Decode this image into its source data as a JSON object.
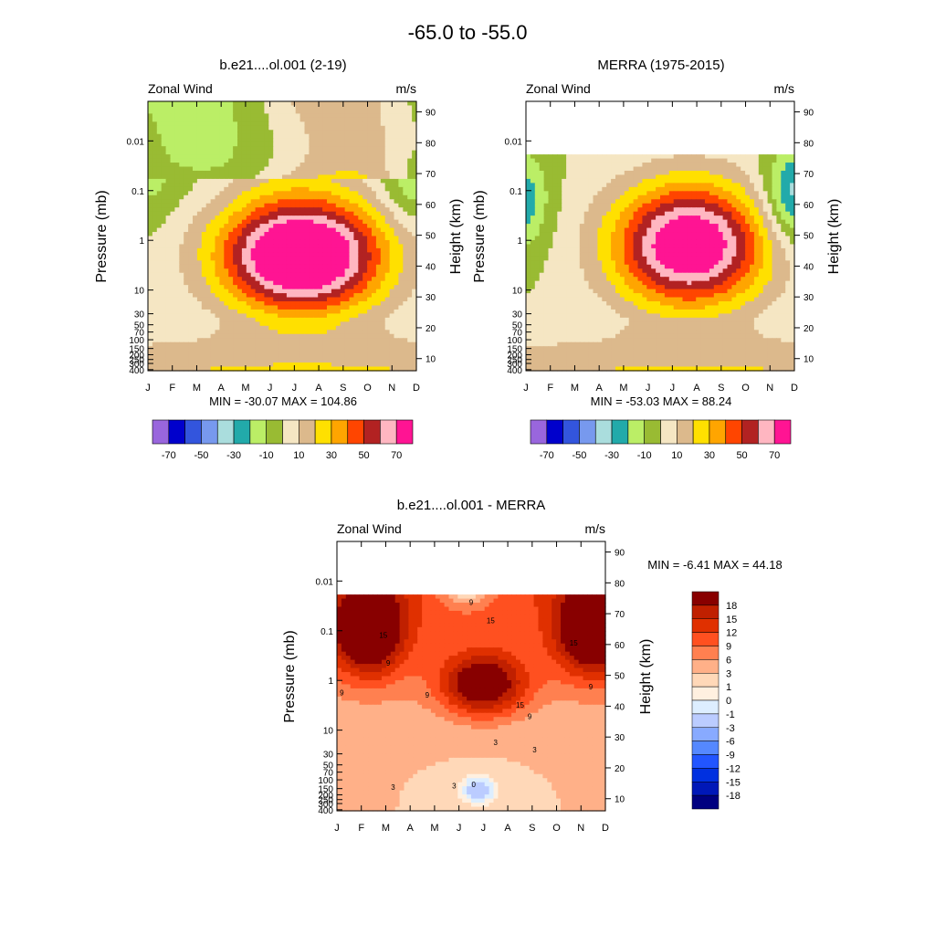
{
  "figure_title": "-65.0 to -55.0",
  "colors": {
    "full_fill": [
      "#9966dd",
      "#0000cc",
      "#3355dd",
      "#7799ee",
      "#aadddd",
      "#22aaaa",
      "#bbee66",
      "#99bb33",
      "#f5e6c3",
      "#dcb98c",
      "#ffe000",
      "#ffa500",
      "#ff4500",
      "#b22222",
      "#ffb6c1",
      "#ff1493"
    ],
    "diff_fill": [
      "#000080",
      "#0018b8",
      "#0030e0",
      "#2255ff",
      "#5588ff",
      "#88aaff",
      "#bbccff",
      "#ddeeff",
      "#fff0e0",
      "#ffd8b8",
      "#ffb088",
      "#ff8050",
      "#ff5020",
      "#e03000",
      "#c02000",
      "#880000"
    ]
  },
  "chart_data": [
    {
      "type": "heatmap",
      "title": "b.e21....ol.001 (2-19)",
      "left_string": "Zonal Wind",
      "right_string": "m/s",
      "ylabel": "Pressure (mb)",
      "ylabel_right": "Height (km)",
      "x_ticklabels": [
        "J",
        "F",
        "M",
        "A",
        "M",
        "J",
        "J",
        "A",
        "S",
        "O",
        "N",
        "D"
      ],
      "y_ticklabels": [
        "0.01",
        "0.1",
        "1",
        "10",
        "30",
        "50",
        "70",
        "100",
        "150",
        "200",
        "250",
        "300",
        "400"
      ],
      "y_right_ticklabels": [
        "90",
        "80",
        "70",
        "60",
        "50",
        "40",
        "30",
        "20",
        "10"
      ],
      "stats": "MIN = -30.07  MAX = 104.86",
      "stats_min": -30.07,
      "stats_max": 104.86,
      "colorbar_labels": [
        "-70",
        "-50",
        "-30",
        "-10",
        "10",
        "30",
        "50",
        "70"
      ],
      "levels": [
        -70,
        -60,
        -50,
        -40,
        -30,
        -20,
        -10,
        0,
        10,
        20,
        30,
        40,
        50,
        60,
        70
      ],
      "jet_peak_month": 6.8,
      "jet_peak_pressure": 2.0,
      "top_pressure": 0.0016
    },
    {
      "type": "heatmap",
      "title": "MERRA (1975-2015)",
      "left_string": "Zonal Wind",
      "right_string": "m/s",
      "ylabel": "Pressure (mb)",
      "ylabel_right": "Height (km)",
      "x_ticklabels": [
        "J",
        "F",
        "M",
        "A",
        "M",
        "J",
        "J",
        "A",
        "S",
        "O",
        "N",
        "D"
      ],
      "y_ticklabels": [
        "0.01",
        "0.1",
        "1",
        "10",
        "30",
        "50",
        "70",
        "100",
        "150",
        "200",
        "250",
        "300",
        "400"
      ],
      "y_right_ticklabels": [
        "90",
        "80",
        "70",
        "60",
        "50",
        "40",
        "30",
        "20",
        "10"
      ],
      "stats": "MIN = -53.03  MAX =  88.24",
      "stats_min": -53.03,
      "stats_max": 88.24,
      "colorbar_labels": [
        "-70",
        "-50",
        "-30",
        "-10",
        "10",
        "30",
        "50",
        "70"
      ],
      "levels": [
        -70,
        -60,
        -50,
        -40,
        -30,
        -20,
        -10,
        0,
        10,
        20,
        30,
        40,
        50,
        60,
        70
      ],
      "jet_peak_month": 7.2,
      "jet_peak_pressure": 1.5,
      "top_pressure": 0.0016
    },
    {
      "type": "heatmap",
      "title": "b.e21....ol.001 - MERRA",
      "left_string": "Zonal Wind",
      "right_string": "m/s",
      "ylabel": "Pressure (mb)",
      "ylabel_right": "Height (km)",
      "x_ticklabels": [
        "J",
        "F",
        "M",
        "A",
        "M",
        "J",
        "J",
        "A",
        "S",
        "O",
        "N",
        "D"
      ],
      "y_ticklabels": [
        "0.01",
        "0.1",
        "1",
        "10",
        "30",
        "50",
        "70",
        "100",
        "150",
        "200",
        "250",
        "300",
        "400"
      ],
      "y_right_ticklabels": [
        "90",
        "80",
        "70",
        "60",
        "50",
        "40",
        "30",
        "20",
        "10"
      ],
      "stats": "MIN =  -6.41  MAX =  44.18",
      "stats_min": -6.41,
      "stats_max": 44.18,
      "colorbar_labels": [
        "18",
        "15",
        "12",
        "9",
        "6",
        "3",
        "1",
        "0",
        "-1",
        "-3",
        "-6",
        "-9",
        "-12",
        "-15",
        "-18"
      ],
      "levels": [
        -18,
        -15,
        -12,
        -9,
        -6,
        -3,
        -1,
        0,
        1,
        3,
        6,
        9,
        12,
        15,
        18
      ],
      "contour_line_labels": [
        "15",
        "15",
        "15",
        "15",
        "9",
        "9",
        "9",
        "9",
        "9",
        "9",
        "3",
        "3",
        "3",
        "3",
        "0"
      ],
      "top_pressure": 0.0016
    }
  ]
}
